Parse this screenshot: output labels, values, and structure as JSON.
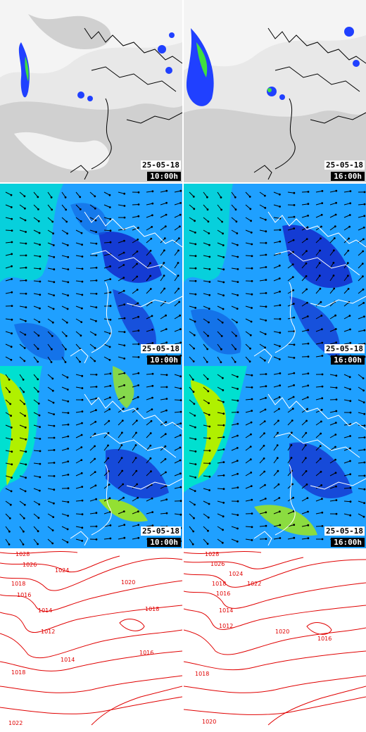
{
  "rows": [
    {
      "layer": "satellite-precipitation",
      "panels": [
        {
          "date": "25-05-18",
          "time": "10:00h"
        },
        {
          "date": "25-05-18",
          "time": "16:00h"
        }
      ]
    },
    {
      "layer": "wind-speed",
      "panels": [
        {
          "date": "25-05-18",
          "time": "10:00h"
        },
        {
          "date": "25-05-18",
          "time": "16:00h"
        }
      ]
    },
    {
      "layer": "wind-gusts",
      "panels": [
        {
          "date": "25-05-18",
          "time": "10:00h"
        },
        {
          "date": "25-05-18",
          "time": "16:00h"
        }
      ]
    },
    {
      "layer": "isobars",
      "panels": [
        {
          "isobar_labels": [
            "1028",
            "1026",
            "1024",
            "1018",
            "1016",
            "1014",
            "1012",
            "1020",
            "1018",
            "1014",
            "1016",
            "1018",
            "1022"
          ]
        },
        {
          "isobar_labels": [
            "1028",
            "1026",
            "1024",
            "1018",
            "1016",
            "1014",
            "1022",
            "1020",
            "1018",
            "1012",
            "1016",
            "1020"
          ]
        }
      ]
    }
  ],
  "colors": {
    "wind_low": "#1010c0",
    "wind_mid": "#1fa0ff",
    "wind_high": "#00e0d0",
    "gust_high": "#b0f000",
    "precip": "#2040ff",
    "precip_heavy": "#40e040",
    "isobar": "#e00000",
    "coast": "#ffffff",
    "coast_dark": "#000000"
  }
}
